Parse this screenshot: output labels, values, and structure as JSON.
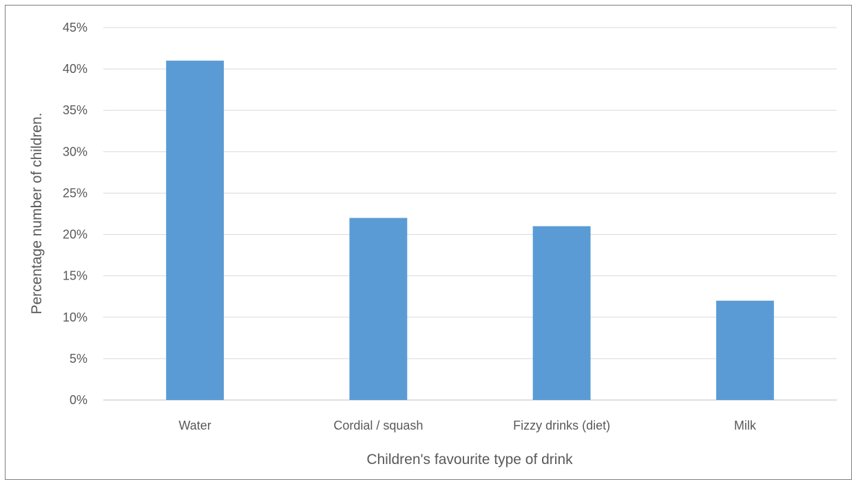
{
  "chart_data": {
    "type": "bar",
    "title": "",
    "categories": [
      "Water",
      "Cordial / squash",
      "Fizzy drinks (diet)",
      "Milk"
    ],
    "values": [
      0.41,
      0.22,
      0.21,
      0.12
    ],
    "xlabel": "Children's favourite type of drink",
    "ylabel": "Percentage number of children.",
    "ylim": [
      0,
      0.45
    ],
    "yticks": [
      0,
      0.05,
      0.1,
      0.15,
      0.2,
      0.25,
      0.3,
      0.35,
      0.4,
      0.45
    ],
    "ytick_labels": [
      "0%",
      "5%",
      "10%",
      "15%",
      "20%",
      "25%",
      "30%",
      "35%",
      "40%",
      "45%"
    ],
    "grid": true,
    "legend": "none",
    "colors": {
      "bar": "#5b9bd5",
      "gridline": "#d9d9d9",
      "text": "#595959"
    }
  }
}
